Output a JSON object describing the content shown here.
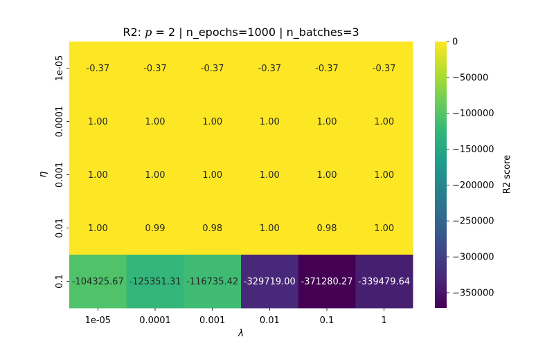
{
  "chart_data": {
    "type": "heatmap",
    "title": "R2: p = 2 | n_epochs=1000 | n_batches=3",
    "title_parts": {
      "prefix": "R2: ",
      "p_symbol": "p",
      "p_equals": " = 2",
      "suffix": " | n_epochs=1000 | n_batches=3"
    },
    "xlabel": "λ",
    "ylabel": "η",
    "x_categories": [
      "1e-05",
      "0.0001",
      "0.001",
      "0.01",
      "0.1",
      "1"
    ],
    "y_categories": [
      "1e-05",
      "0.0001",
      "0.001",
      "0.01",
      "0.1"
    ],
    "values": [
      [
        -0.37,
        -0.37,
        -0.37,
        -0.37,
        -0.37,
        -0.37
      ],
      [
        1.0,
        1.0,
        1.0,
        1.0,
        1.0,
        1.0
      ],
      [
        1.0,
        1.0,
        1.0,
        1.0,
        1.0,
        1.0
      ],
      [
        1.0,
        0.99,
        0.98,
        1.0,
        0.98,
        1.0
      ],
      [
        -104325.67,
        -125351.31,
        -116735.42,
        -329719.0,
        -371280.27,
        -339479.64
      ]
    ],
    "annotations": [
      [
        "-0.37",
        "-0.37",
        "-0.37",
        "-0.37",
        "-0.37",
        "-0.37"
      ],
      [
        "1.00",
        "1.00",
        "1.00",
        "1.00",
        "1.00",
        "1.00"
      ],
      [
        "1.00",
        "1.00",
        "1.00",
        "1.00",
        "1.00",
        "1.00"
      ],
      [
        "1.00",
        "0.99",
        "0.98",
        "1.00",
        "0.98",
        "1.00"
      ],
      [
        "-104325.67",
        "-125351.31",
        "-116735.42",
        "-329719.00",
        "-371280.27",
        "-339479.64"
      ]
    ],
    "colormap": "viridis",
    "colorbar": {
      "label": "R2 score",
      "range": [
        -371280.27,
        1.0
      ],
      "ticks": [
        0,
        -50000,
        -100000,
        -150000,
        -200000,
        -250000,
        -300000,
        -350000
      ],
      "tick_labels": [
        "0",
        "−50000",
        "−100000",
        "−150000",
        "−200000",
        "−250000",
        "−300000",
        "−350000"
      ]
    },
    "viridis_stops": [
      "#440154",
      "#482878",
      "#3e4989",
      "#31688e",
      "#26828e",
      "#1f9e89",
      "#35b779",
      "#6ece58",
      "#b5de2b",
      "#fde725"
    ]
  }
}
